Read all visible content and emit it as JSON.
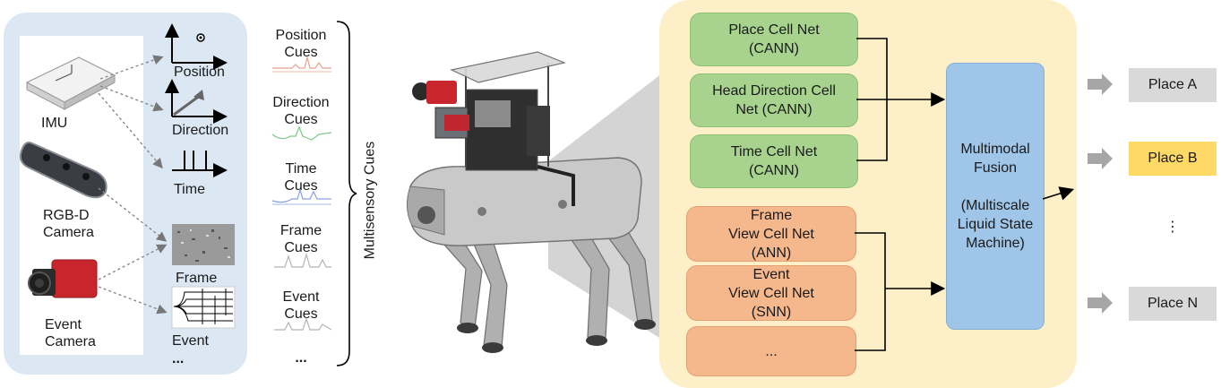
{
  "sensors": {
    "imu": "IMU",
    "rgbd": "RGB-D\nCamera",
    "event_camera": "Event\nCamera",
    "position": "Position",
    "direction": "Direction",
    "time": "Time",
    "frame": "Frame",
    "event": "Event",
    "ellipsis": "..."
  },
  "cues": {
    "items": [
      "Position\nCues",
      "Direction\nCues",
      "Time\nCues",
      "Frame\nCues",
      "Event\nCues"
    ],
    "ellipsis": "...",
    "brace_label": "Multisensory Cues"
  },
  "networks": {
    "place_cell": "Place Cell Net\n(CANN)",
    "head_direction": "Head Direction Cell\nNet (CANN)",
    "time_cell": "Time Cell Net\n(CANN)",
    "frame_view": "Frame\nView Cell Net\n(ANN)",
    "event_view": "Event\nView Cell Net\n(SNN)",
    "more": "...",
    "fusion": "Multimodal\nFusion\n\n(Multiscale\nLiquid State\nMachine)"
  },
  "outputs": {
    "place_a": "Place A",
    "place_b": "Place B",
    "vertical_ellipsis": "⋮",
    "place_n": "Place N"
  },
  "colors": {
    "sensor_panel": "#dbe8f4",
    "fusion_panel": "#fdf0c8",
    "cann": "#a8d38f",
    "view_cell": "#f5b88c",
    "fusion": "#9fc5e8",
    "place_selected": "#ffd966",
    "place_default": "#d9d9d9"
  }
}
